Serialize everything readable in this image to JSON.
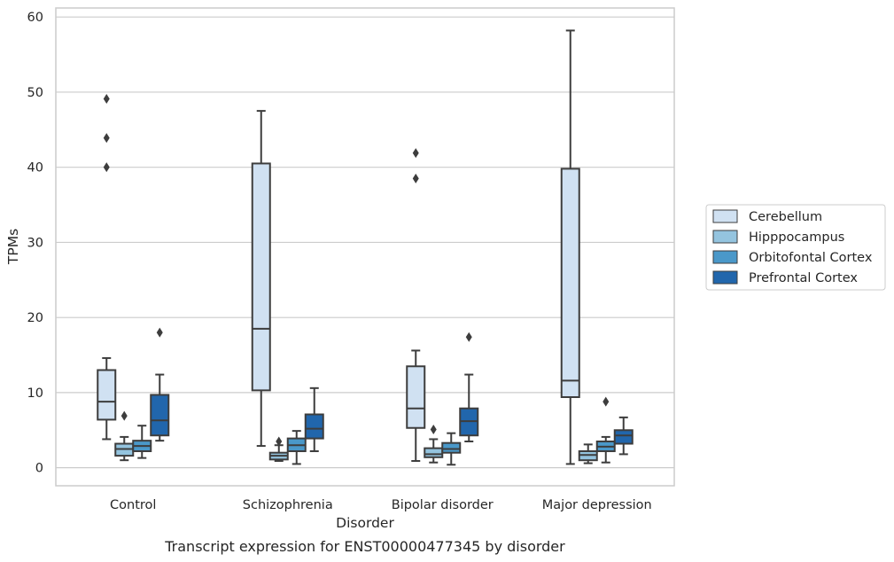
{
  "chart_data": {
    "type": "box",
    "title": "",
    "caption": "Transcript expression for ENST00000477345 by disorder",
    "xlabel": "Disorder",
    "ylabel": "TPMs",
    "ylim": [
      -2.4,
      61.2
    ],
    "yticks": [
      "0",
      "10",
      "20",
      "30",
      "40",
      "50",
      "60"
    ],
    "grid": "horizontal",
    "legend_position": "right",
    "categories": [
      "Control",
      "Schizophrenia",
      "Bipolar disorder",
      "Major depression"
    ],
    "series": [
      {
        "name": "Cerebellum",
        "color": "#d0e1f2",
        "boxes": [
          {
            "whisker_low": 3.8,
            "q1": 6.4,
            "median": 8.8,
            "q3": 13.0,
            "whisker_high": 14.6,
            "outliers": [
              40.0,
              43.9,
              49.1
            ]
          },
          {
            "whisker_low": 2.9,
            "q1": 10.3,
            "median": 18.5,
            "q3": 40.5,
            "whisker_high": 47.5,
            "outliers": []
          },
          {
            "whisker_low": 0.9,
            "q1": 5.3,
            "median": 7.9,
            "q3": 13.5,
            "whisker_high": 15.6,
            "outliers": [
              38.5,
              41.9
            ]
          },
          {
            "whisker_low": 0.5,
            "q1": 9.4,
            "median": 11.6,
            "q3": 39.8,
            "whisker_high": 58.2,
            "outliers": []
          }
        ]
      },
      {
        "name": "Hipppocampus",
        "color": "#94c4df",
        "boxes": [
          {
            "whisker_low": 1.0,
            "q1": 1.6,
            "median": 2.5,
            "q3": 3.2,
            "whisker_high": 4.1,
            "outliers": [
              6.9
            ]
          },
          {
            "whisker_low": 0.9,
            "q1": 1.1,
            "median": 1.6,
            "q3": 2.0,
            "whisker_high": 3.0,
            "outliers": [
              3.5
            ]
          },
          {
            "whisker_low": 0.7,
            "q1": 1.4,
            "median": 1.8,
            "q3": 2.6,
            "whisker_high": 3.8,
            "outliers": [
              5.1
            ]
          },
          {
            "whisker_low": 0.6,
            "q1": 1.0,
            "median": 1.7,
            "q3": 2.2,
            "whisker_high": 3.1,
            "outliers": []
          }
        ]
      },
      {
        "name": "Orbitofontal Cortex",
        "color": "#4a98c9",
        "boxes": [
          {
            "whisker_low": 1.3,
            "q1": 2.2,
            "median": 2.9,
            "q3": 3.6,
            "whisker_high": 5.6,
            "outliers": []
          },
          {
            "whisker_low": 0.5,
            "q1": 2.2,
            "median": 3.0,
            "q3": 3.9,
            "whisker_high": 4.9,
            "outliers": []
          },
          {
            "whisker_low": 0.4,
            "q1": 2.0,
            "median": 2.5,
            "q3": 3.3,
            "whisker_high": 4.6,
            "outliers": []
          },
          {
            "whisker_low": 0.7,
            "q1": 2.2,
            "median": 2.8,
            "q3": 3.5,
            "whisker_high": 4.1,
            "outliers": [
              8.8
            ]
          }
        ]
      },
      {
        "name": "Prefrontal Cortex",
        "color": "#2166ac",
        "boxes": [
          {
            "whisker_low": 3.6,
            "q1": 4.3,
            "median": 6.3,
            "q3": 9.7,
            "whisker_high": 12.4,
            "outliers": [
              18.0
            ]
          },
          {
            "whisker_low": 2.2,
            "q1": 3.9,
            "median": 5.2,
            "q3": 7.1,
            "whisker_high": 10.6,
            "outliers": []
          },
          {
            "whisker_low": 3.5,
            "q1": 4.3,
            "median": 6.2,
            "q3": 7.9,
            "whisker_high": 12.4,
            "outliers": [
              17.4
            ]
          },
          {
            "whisker_low": 1.8,
            "q1": 3.2,
            "median": 4.3,
            "q3": 5.0,
            "whisker_high": 6.7,
            "outliers": []
          }
        ]
      }
    ]
  }
}
